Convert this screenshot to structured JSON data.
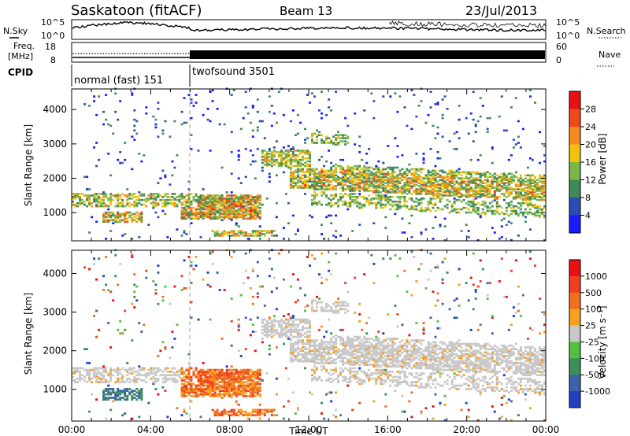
{
  "header": {
    "radar": "Saskatoon (fitACF)",
    "beam": "Beam 13",
    "date": "23/Jul/2013"
  },
  "top_panels": {
    "nsky_label": "N.Sky",
    "nsearch_label": "N.Search",
    "nsky_ticks": [
      "10^5",
      "10^0"
    ],
    "nsearch_ticks": [
      "10^5",
      "10^0"
    ],
    "freq_label_1": "Freq.",
    "freq_label_2": "[MHz]",
    "freq_ticks": [
      "18",
      "8"
    ],
    "nave_label": "Nave",
    "nave_ticks": [
      "60",
      "0"
    ],
    "cpid_label": "CPID",
    "cpid_segments": [
      {
        "label": "normal (fast) 151",
        "start_hour": 0,
        "end_hour": 6.0
      },
      {
        "label": "twofsound 3501",
        "start_hour": 6.0,
        "end_hour": 24.0
      }
    ]
  },
  "chart_data": [
    {
      "type": "heatmap",
      "name": "power",
      "ylabel": "Slant Range [km]",
      "xlabel": "",
      "ylim": [
        180,
        4600
      ],
      "xlim_hours": [
        0,
        24
      ],
      "yticks": [
        "1000",
        "2000",
        "3000",
        "4000"
      ],
      "colorbar_label": "Power [dB]",
      "colorbar_ticks": [
        "4",
        "8",
        "12",
        "16",
        "20",
        "24",
        "28"
      ],
      "colorbar_colors": [
        "#1a1aff",
        "#2a4db3",
        "#3f8a5a",
        "#7ab84a",
        "#f2c20f",
        "#f58a1f",
        "#f04a1a",
        "#e81010"
      ]
    },
    {
      "type": "heatmap",
      "name": "velocity",
      "ylabel": "Slant Range [km]",
      "xlabel": "Time UT",
      "ylim": [
        180,
        4600
      ],
      "xlim_hours": [
        0,
        24
      ],
      "yticks": [
        "1000",
        "2000",
        "3000",
        "4000"
      ],
      "xticks": [
        "00:00",
        "04:00",
        "08:00",
        "12:00",
        "16:00",
        "20:00",
        "00:00"
      ],
      "colorbar_label": "Velocity [m s⁻¹]",
      "colorbar_ticks": [
        "1000",
        "500",
        "100",
        "25",
        "-25",
        "-100",
        "-500",
        "-1000"
      ],
      "colorbar_colors": [
        "#2040c0",
        "#3a62a8",
        "#3c8f5a",
        "#55c040",
        "#c8c8c8",
        "#f5a020",
        "#f07020",
        "#f04020",
        "#e81010"
      ]
    }
  ]
}
